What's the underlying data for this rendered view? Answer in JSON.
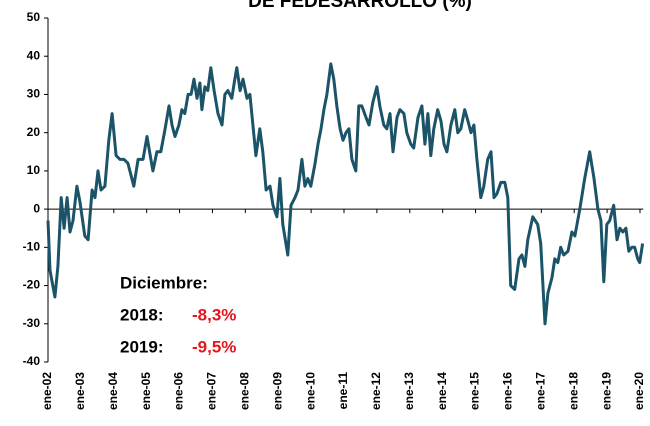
{
  "chart_data": {
    "type": "line",
    "title": "DE FEDESARROLLO (%)",
    "color": "#1b5468",
    "x": [
      2002.0,
      2002.06,
      2002.21,
      2002.3,
      2002.4,
      2002.49,
      2002.58,
      2002.67,
      2002.76,
      2002.88,
      2002.97,
      2003.12,
      2003.22,
      2003.34,
      2003.43,
      2003.52,
      2003.61,
      2003.73,
      2003.85,
      2003.95,
      2004.07,
      2004.19,
      2004.31,
      2004.43,
      2004.52,
      2004.61,
      2004.74,
      2004.89,
      2005.01,
      2005.13,
      2005.19,
      2005.31,
      2005.43,
      2005.56,
      2005.68,
      2005.77,
      2005.86,
      2005.98,
      2006.07,
      2006.16,
      2006.26,
      2006.35,
      2006.44,
      2006.53,
      2006.62,
      2006.68,
      2006.77,
      2006.86,
      2006.95,
      2007.05,
      2007.17,
      2007.29,
      2007.38,
      2007.47,
      2007.59,
      2007.68,
      2007.74,
      2007.84,
      2007.93,
      2008.05,
      2008.14,
      2008.23,
      2008.32,
      2008.44,
      2008.53,
      2008.63,
      2008.75,
      2008.84,
      2008.96,
      2009.05,
      2009.14,
      2009.29,
      2009.39,
      2009.51,
      2009.6,
      2009.72,
      2009.81,
      2009.9,
      2009.99,
      2010.12,
      2010.21,
      2010.3,
      2010.39,
      2010.48,
      2010.6,
      2010.69,
      2010.78,
      2010.88,
      2010.97,
      2011.06,
      2011.15,
      2011.24,
      2011.36,
      2011.45,
      2011.54,
      2011.67,
      2011.76,
      2011.88,
      2012.0,
      2012.09,
      2012.21,
      2012.3,
      2012.4,
      2012.49,
      2012.61,
      2012.7,
      2012.82,
      2012.91,
      2013.03,
      2013.12,
      2013.25,
      2013.37,
      2013.46,
      2013.55,
      2013.64,
      2013.73,
      2013.85,
      2013.95,
      2014.04,
      2014.13,
      2014.25,
      2014.37,
      2014.46,
      2014.55,
      2014.67,
      2014.77,
      2014.86,
      2014.95,
      2015.04,
      2015.16,
      2015.25,
      2015.37,
      2015.47,
      2015.56,
      2015.65,
      2015.77,
      2015.89,
      2015.98,
      2016.07,
      2016.19,
      2016.32,
      2016.41,
      2016.5,
      2016.59,
      2016.74,
      2016.89,
      2016.98,
      2017.11,
      2017.2,
      2017.32,
      2017.41,
      2017.5,
      2017.59,
      2017.68,
      2017.81,
      2017.93,
      2018.02,
      2018.17,
      2018.32,
      2018.47,
      2018.6,
      2018.72,
      2018.81,
      2018.9,
      2018.99,
      2019.08,
      2019.2,
      2019.3,
      2019.39,
      2019.48,
      2019.57,
      2019.66,
      2019.75,
      2019.84,
      2019.93,
      2019.99,
      2020.08
    ],
    "values": [
      -3,
      -16,
      -23,
      -15,
      3,
      -5,
      3,
      -6,
      -3,
      6,
      2,
      -7,
      -8,
      5,
      3,
      10,
      5,
      6,
      18,
      25,
      14,
      13,
      13,
      12,
      9,
      6,
      13,
      13,
      19,
      13,
      10,
      15,
      15,
      21,
      27,
      22,
      19,
      22,
      26,
      25,
      30,
      30,
      34,
      29,
      33,
      26,
      32,
      31,
      37,
      31,
      25,
      22,
      30,
      31,
      29,
      34,
      37,
      31,
      34,
      29,
      30,
      22,
      14,
      21,
      15,
      5,
      6,
      1,
      -2,
      8,
      -4,
      -12,
      1,
      3,
      5,
      13,
      6,
      8,
      6,
      12,
      17,
      21,
      26,
      30,
      38,
      34,
      27,
      21,
      18,
      20,
      21,
      13,
      10,
      27,
      27,
      24,
      22,
      28,
      32,
      27,
      22,
      21,
      25,
      15,
      24,
      26,
      25,
      20,
      17,
      16,
      24,
      27,
      17,
      25,
      14,
      21,
      26,
      23,
      17,
      15,
      22,
      26,
      20,
      21,
      26,
      23,
      20,
      22,
      13,
      3,
      6,
      13,
      15,
      3,
      4,
      7,
      7,
      3,
      -20,
      -21,
      -13,
      -12,
      -15,
      -8,
      -2,
      -4,
      -9,
      -30,
      -22,
      -18,
      -13,
      -14,
      -10,
      -12,
      -11,
      -6,
      -7,
      0,
      8,
      15,
      8,
      0,
      -3,
      -19,
      -4,
      -3,
      1,
      -8,
      -5,
      -6,
      -5,
      -11,
      -10,
      -10,
      -13,
      -14,
      -9
    ],
    "xlim": [
      2002,
      2020.1
    ],
    "xticks": [
      {
        "value": 2002,
        "label": "ene-02"
      },
      {
        "value": 2003,
        "label": "ene-03"
      },
      {
        "value": 2004,
        "label": "ene-04"
      },
      {
        "value": 2005,
        "label": "ene-05"
      },
      {
        "value": 2006,
        "label": "ene-06"
      },
      {
        "value": 2007,
        "label": "ene-07"
      },
      {
        "value": 2008,
        "label": "ene-08"
      },
      {
        "value": 2009,
        "label": "ene-09"
      },
      {
        "value": 2010,
        "label": "ene-10"
      },
      {
        "value": 2011,
        "label": "ene-11"
      },
      {
        "value": 2012,
        "label": "ene-12"
      },
      {
        "value": 2013,
        "label": "ene-13"
      },
      {
        "value": 2014,
        "label": "ene-14"
      },
      {
        "value": 2015,
        "label": "ene-15"
      },
      {
        "value": 2016,
        "label": "ene-16"
      },
      {
        "value": 2017,
        "label": "ene-17"
      },
      {
        "value": 2018,
        "label": "ene-18"
      },
      {
        "value": 2019,
        "label": "ene-19"
      },
      {
        "value": 2020,
        "label": "ene-20"
      }
    ],
    "ylim": [
      -40,
      50
    ],
    "yticks": [
      -40,
      -30,
      -20,
      -10,
      0,
      10,
      20,
      30,
      40,
      50
    ],
    "annotation": {
      "heading": "Diciembre:",
      "rows": [
        {
          "label": "2018:",
          "value_label": "-8,3%"
        },
        {
          "label": "2019:",
          "value_label": "-9,5%"
        }
      ]
    }
  }
}
